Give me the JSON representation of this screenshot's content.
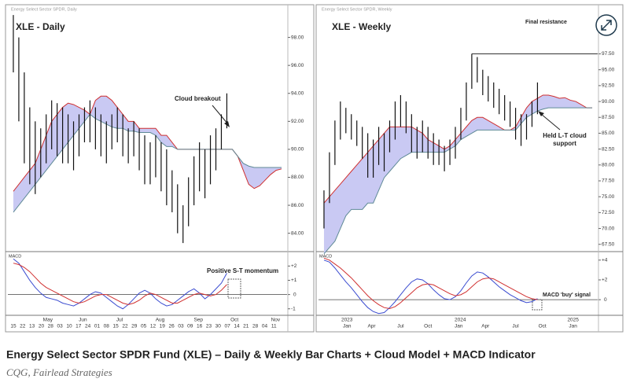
{
  "header_small": [
    "Energy Select Sector SPDR, Daily",
    "Energy Select Sector SPDR, Weekly"
  ],
  "caption": "Energy Select Sector SPDR Fund (XLE) – Daily & Weekly Bar Charts + Cloud Model + MACD Indicator",
  "source": "CQG, Fairlead Strategies",
  "chart_data": [
    {
      "type": "ohlc",
      "title": "XLE - Daily",
      "annotations": [
        "Cloud breakout"
      ],
      "bar_color": "#111111",
      "cloud_color": "#c9c9f3",
      "cloud_top_color": "#d03030",
      "cloud_bottom_color": "#5f8a96",
      "xlim": [
        -1,
        50
      ],
      "ylim": [
        82.8,
        100
      ],
      "yticks": [
        {
          "value": 84,
          "label": "84.00"
        },
        {
          "value": 86,
          "label": "86.00"
        },
        {
          "value": 88,
          "label": "88.00"
        },
        {
          "value": 90,
          "label": "90.00"
        },
        {
          "value": 92,
          "label": "92.00"
        },
        {
          "value": 94,
          "label": "94.00"
        },
        {
          "value": 96,
          "label": "96.00"
        },
        {
          "value": 98,
          "label": "98.00"
        }
      ],
      "high": [
        99.6,
        98,
        95.5,
        93,
        92,
        91.5,
        92.5,
        93.5,
        93.3,
        93,
        92.5,
        92,
        92.5,
        93,
        93.5,
        93,
        92.5,
        92,
        92.5,
        93,
        92.5,
        91.5,
        92,
        91.5,
        91,
        90.5,
        91,
        90.5,
        90,
        88.5,
        87.5,
        86,
        88,
        89.5,
        90.5,
        90,
        91,
        91.5,
        92.5,
        94
      ],
      "low": [
        95.5,
        92,
        89,
        87.5,
        86.8,
        88,
        89,
        90,
        89.5,
        89,
        89,
        88.5,
        89.5,
        90.5,
        90.5,
        90,
        89.5,
        89,
        90,
        90.5,
        89.5,
        89,
        89.5,
        88.5,
        87.5,
        87.5,
        88,
        87,
        86,
        85.5,
        84,
        83.3,
        84.5,
        86,
        87,
        86.5,
        87.5,
        88.5,
        90,
        91.5
      ],
      "cloud_top": [
        87,
        87.5,
        88,
        88.5,
        89,
        90,
        91,
        92,
        92.5,
        93,
        93.3,
        93.2,
        93,
        92.8,
        92.5,
        93.5,
        93.8,
        93.8,
        93.5,
        93,
        92.5,
        92,
        92,
        91.5,
        91.5,
        91.5,
        91.5,
        91,
        91,
        90.5,
        90,
        90,
        90,
        90,
        90,
        90,
        90,
        90,
        90,
        90,
        90,
        89.5,
        88.5,
        87.5,
        87.2,
        87.4,
        87.8,
        88.2,
        88.5,
        88.6
      ],
      "cloud_bottom": [
        85.5,
        86,
        86.5,
        87,
        87.5,
        88,
        88.5,
        89,
        89.5,
        90,
        90.5,
        91,
        91.5,
        92,
        92.5,
        92.2,
        92,
        91.8,
        91.6,
        91.5,
        91.5,
        91.3,
        91.3,
        91.2,
        91.2,
        91.2,
        91,
        90.5,
        90.2,
        90.2,
        90,
        90,
        90,
        90,
        90,
        90,
        90,
        90,
        90,
        90,
        90,
        89.5,
        89,
        88.8,
        88.7,
        88.7,
        88.7,
        88.7,
        88.7,
        88.7
      ]
    },
    {
      "type": "line",
      "title": "MACD",
      "annotations": [
        "Positive S-T momentum"
      ],
      "xlim": [
        -1,
        50
      ],
      "ylim": [
        -1.4,
        2.9
      ],
      "yticks": [
        {
          "value": -1,
          "label": "-1"
        },
        0,
        {
          "value": 1,
          "label": "+1"
        },
        {
          "value": 2,
          "label": "+2"
        }
      ],
      "xticks_major": [
        {
          "value": 6.3,
          "label": "May"
        },
        {
          "value": 12.7,
          "label": "Jun"
        },
        {
          "value": 19.4,
          "label": "Jul"
        },
        {
          "value": 26.8,
          "label": "Aug"
        },
        {
          "value": 33.8,
          "label": "Sep"
        },
        {
          "value": 40.4,
          "label": "Oct"
        },
        {
          "value": 47.9,
          "label": "Nov"
        }
      ],
      "xticks": [
        {
          "value": 0,
          "label": "15"
        },
        {
          "value": 1.7,
          "label": "22"
        },
        {
          "value": 3.4,
          "label": "13"
        },
        {
          "value": 5.1,
          "label": "20"
        },
        {
          "value": 6.8,
          "label": "28"
        },
        {
          "value": 8.5,
          "label": "03"
        },
        {
          "value": 10.2,
          "label": "10"
        },
        {
          "value": 11.9,
          "label": "17"
        },
        {
          "value": 13.6,
          "label": "24"
        },
        {
          "value": 15.3,
          "label": "01"
        },
        {
          "value": 17,
          "label": "08"
        },
        {
          "value": 18.7,
          "label": "15"
        },
        {
          "value": 20.4,
          "label": "22"
        },
        {
          "value": 22.1,
          "label": "29"
        },
        {
          "value": 23.8,
          "label": "05"
        },
        {
          "value": 25.5,
          "label": "12"
        },
        {
          "value": 27.2,
          "label": "19"
        },
        {
          "value": 28.9,
          "label": "26"
        },
        {
          "value": 30.6,
          "label": "03"
        },
        {
          "value": 32.3,
          "label": "09"
        },
        {
          "value": 34,
          "label": "16"
        },
        {
          "value": 35.7,
          "label": "23"
        },
        {
          "value": 37.4,
          "label": "30"
        },
        {
          "value": 39.1,
          "label": "07"
        },
        {
          "value": 40.8,
          "label": "14"
        },
        {
          "value": 42.5,
          "label": "21"
        },
        {
          "value": 44.2,
          "label": "28"
        },
        {
          "value": 45.9,
          "label": "04"
        },
        {
          "value": 47.6,
          "label": "11"
        }
      ],
      "series": [
        {
          "color": "#3a4bd0",
          "values": [
            2.5,
            2.2,
            1.6,
            1.0,
            0.5,
            0.1,
            -0.2,
            -0.3,
            -0.4,
            -0.6,
            -0.7,
            -0.8,
            -0.6,
            -0.3,
            0,
            0.2,
            0.1,
            -0.2,
            -0.5,
            -0.8,
            -1,
            -0.7,
            -0.3,
            0.1,
            0.3,
            0.1,
            -0.3,
            -0.6,
            -0.8,
            -0.7,
            -0.4,
            -0.1,
            0.2,
            0.4,
            0.1,
            -0.3,
            0,
            0.4,
            0.8,
            1.5
          ]
        },
        {
          "color": "#d03030",
          "values": [
            2.2,
            2.1,
            1.9,
            1.6,
            1.2,
            0.8,
            0.5,
            0.3,
            0.1,
            -0.1,
            -0.3,
            -0.5,
            -0.6,
            -0.5,
            -0.3,
            -0.1,
            0,
            0,
            -0.2,
            -0.4,
            -0.6,
            -0.7,
            -0.6,
            -0.4,
            -0.1,
            0.1,
            0,
            -0.2,
            -0.4,
            -0.6,
            -0.6,
            -0.4,
            -0.2,
            0,
            0.1,
            0,
            -0.1,
            0,
            0.3,
            0.7
          ]
        }
      ]
    },
    {
      "type": "ohlc",
      "title": "XLE - Weekly",
      "annotations": [
        "Final resistance",
        "Held L-T cloud",
        "support"
      ],
      "bar_color": "#111111",
      "cloud_color": "#c9c9f3",
      "cloud_top_color": "#d03030",
      "cloud_bottom_color": "#5f8a96",
      "resistance": 97.5,
      "xlim": [
        -1,
        50
      ],
      "ylim": [
        66.6,
        104.5
      ],
      "yticks": [
        {
          "value": 67.5,
          "label": "67.50"
        },
        {
          "value": 70,
          "label": "70.00"
        },
        {
          "value": 72.5,
          "label": "72.50"
        },
        {
          "value": 75,
          "label": "75.00"
        },
        {
          "value": 77.5,
          "label": "77.50"
        },
        {
          "value": 80,
          "label": "80.00"
        },
        {
          "value": 82.5,
          "label": "82.50"
        },
        {
          "value": 85,
          "label": "85.00"
        },
        {
          "value": 87.5,
          "label": "87.50"
        },
        {
          "value": 90,
          "label": "90.00"
        },
        {
          "value": 92.5,
          "label": "92.50"
        },
        {
          "value": 95,
          "label": "95.00"
        },
        {
          "value": 97.5,
          "label": "97.50"
        }
      ],
      "high": [
        76,
        82,
        87,
        90,
        89,
        88,
        87,
        86,
        85,
        84,
        86,
        85,
        87,
        90,
        91,
        90,
        88,
        86,
        87,
        86,
        85,
        84,
        83,
        84,
        86,
        89,
        93,
        97.5,
        97,
        95,
        94,
        93,
        92,
        91,
        90,
        89,
        88,
        88,
        90,
        93
      ],
      "low": [
        70,
        74,
        80,
        84,
        85,
        84,
        83,
        81,
        78,
        78,
        80,
        79,
        82,
        84,
        86,
        85,
        82,
        81,
        82,
        81,
        80,
        80,
        79,
        80,
        81,
        84,
        87,
        92,
        93,
        91,
        90,
        89,
        88,
        87,
        86,
        84,
        83,
        84,
        86,
        88
      ],
      "cloud_top": [
        74,
        75,
        76,
        77,
        78,
        79,
        80,
        81,
        82,
        83,
        84,
        85,
        86,
        86,
        86,
        86,
        86,
        85.5,
        85,
        84,
        83.5,
        83,
        82.5,
        83,
        84,
        85,
        86,
        87,
        87.5,
        87.5,
        87,
        86.5,
        86,
        85.5,
        85.5,
        86,
        87.5,
        89,
        90,
        90.5,
        91,
        91,
        90.8,
        90.5,
        90.6,
        90.2,
        90,
        89.5,
        89,
        89
      ],
      "cloud_bottom": [
        66,
        67,
        68,
        70,
        72,
        73,
        73,
        73,
        74,
        74,
        76,
        78,
        79,
        80,
        81,
        81.5,
        82,
        82,
        82,
        82,
        82,
        82,
        82,
        82.5,
        83,
        84,
        84.5,
        85,
        85.5,
        85.5,
        85.5,
        85.5,
        85.5,
        85.5,
        85.5,
        85.5,
        86.5,
        87.5,
        88,
        88.5,
        88.8,
        89,
        89,
        89,
        89,
        89,
        89,
        89,
        89,
        89
      ]
    },
    {
      "type": "line",
      "title": "MACD",
      "annotations": [
        "MACD 'buy' signal"
      ],
      "xlim": [
        -1,
        50
      ],
      "ylim": [
        -1.5,
        4.7
      ],
      "yticks": [
        0,
        {
          "value": 2,
          "label": "+2"
        },
        {
          "value": 4,
          "label": "+4"
        }
      ],
      "xticks_major": [
        {
          "value": 4.2,
          "label": "2023"
        },
        {
          "value": 24.9,
          "label": "2024"
        },
        {
          "value": 45.5,
          "label": "2025"
        }
      ],
      "xticks": [
        {
          "value": 4.2,
          "label": "Jan"
        },
        {
          "value": 8.7,
          "label": "Apr"
        },
        {
          "value": 14,
          "label": "Jul"
        },
        {
          "value": 19,
          "label": "Oct"
        },
        {
          "value": 24.6,
          "label": "Jan"
        },
        {
          "value": 29.5,
          "label": "Apr"
        },
        {
          "value": 35,
          "label": "Jul"
        },
        {
          "value": 39.9,
          "label": "Oct"
        },
        {
          "value": 45.5,
          "label": "Jan"
        }
      ],
      "series": [
        {
          "color": "#3a4bd0",
          "values": [
            4,
            3.8,
            3.2,
            2.5,
            1.8,
            1.2,
            0.5,
            -0.2,
            -0.8,
            -1.2,
            -1.4,
            -1.3,
            -0.8,
            -0.2,
            0.5,
            1.2,
            1.8,
            2.1,
            2,
            1.6,
            1,
            0.5,
            0.1,
            0,
            0.3,
            0.9,
            1.7,
            2.4,
            2.8,
            2.7,
            2.3,
            1.8,
            1.3,
            0.9,
            0.5,
            0.2,
            -0.1,
            -0.3,
            -0.2,
            0.1
          ]
        },
        {
          "color": "#d03030",
          "values": [
            4.2,
            4,
            3.6,
            3.2,
            2.7,
            2.2,
            1.6,
            1,
            0.4,
            -0.1,
            -0.5,
            -0.8,
            -0.9,
            -0.7,
            -0.3,
            0.2,
            0.7,
            1.2,
            1.5,
            1.6,
            1.5,
            1.2,
            0.9,
            0.6,
            0.4,
            0.5,
            0.8,
            1.3,
            1.8,
            2.1,
            2.2,
            2.1,
            1.8,
            1.5,
            1.2,
            0.9,
            0.6,
            0.3,
            0.1,
            0
          ]
        }
      ]
    }
  ]
}
